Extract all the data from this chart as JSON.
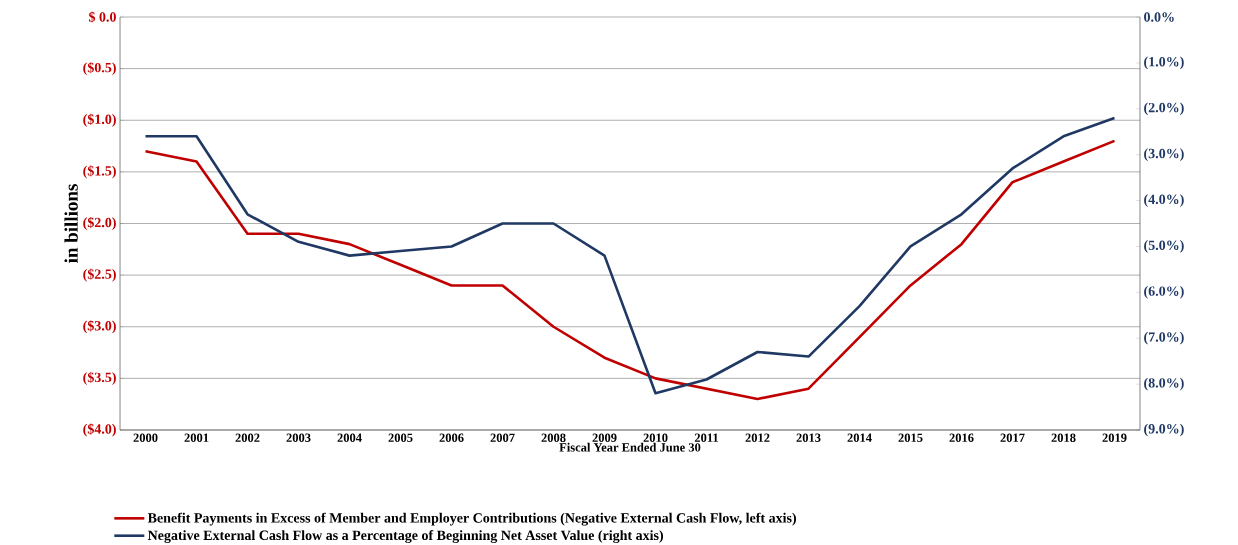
{
  "chart_data": {
    "type": "line",
    "categories": [
      "2000",
      "2001",
      "2002",
      "2003",
      "2004",
      "2005",
      "2006",
      "2007",
      "2008",
      "2009",
      "2010",
      "2011",
      "2012",
      "2013",
      "2014",
      "2015",
      "2016",
      "2017",
      "2018",
      "2019"
    ],
    "xlabel": "Fiscal Year Ended June 30",
    "ylabel": "in billions",
    "series": [
      {
        "name": "Benefit Payments in Excess of Member and Employer Contributions (Negative External Cash Flow, left axis)",
        "color": "#c00000",
        "values": [
          -1.3,
          -1.4,
          -2.1,
          -2.1,
          -2.2,
          -2.4,
          -2.6,
          -2.6,
          -3.0,
          -3.3,
          -3.5,
          -3.6,
          -3.7,
          -3.6,
          -3.1,
          -2.6,
          -2.2,
          -1.6,
          -1.4,
          -1.2
        ]
      },
      {
        "name": "Negative External Cash Flow as a Percentage of Beginning Net Asset Value (right axis)",
        "color": "#1f3864",
        "axis": "y2",
        "values": [
          -2.6,
          -2.6,
          -4.3,
          -4.9,
          -5.2,
          -5.1,
          -5.0,
          -4.5,
          -4.5,
          -5.2,
          -8.2,
          -7.9,
          -7.3,
          -7.4,
          -6.3,
          -5.0,
          -4.3,
          -3.3,
          -2.6,
          -2.2
        ]
      }
    ],
    "ylim": [
      -4.0,
      0.0
    ],
    "yticks": [
      {
        "value": 0.0,
        "label": "$ 0.0"
      },
      {
        "value": -0.5,
        "label": "($0.5)"
      },
      {
        "value": -1.0,
        "label": "($1.0)"
      },
      {
        "value": -1.5,
        "label": "($1.5)"
      },
      {
        "value": -2.0,
        "label": "($2.0)"
      },
      {
        "value": -2.5,
        "label": "($2.5)"
      },
      {
        "value": -3.0,
        "label": "($3.0)"
      },
      {
        "value": -3.5,
        "label": "($3.5)"
      },
      {
        "value": -4.0,
        "label": "($4.0)"
      }
    ],
    "y2lim": [
      -9.0,
      0.0
    ],
    "y2ticks": [
      {
        "value": 0.0,
        "label": "0.0%"
      },
      {
        "value": -1.0,
        "label": "(1.0%)"
      },
      {
        "value": -2.0,
        "label": "(2.0%)"
      },
      {
        "value": -3.0,
        "label": "(3.0%)"
      },
      {
        "value": -4.0,
        "label": "(4.0%)"
      },
      {
        "value": -5.0,
        "label": "(5.0%)"
      },
      {
        "value": -6.0,
        "label": "(6.0%)"
      },
      {
        "value": -7.0,
        "label": "(7.0%)"
      },
      {
        "value": -8.0,
        "label": "(8.0%)"
      },
      {
        "value": -9.0,
        "label": "(9.0%)"
      }
    ],
    "grid": "y",
    "legend": "bottom",
    "marker": "none",
    "line_style": "solid"
  }
}
